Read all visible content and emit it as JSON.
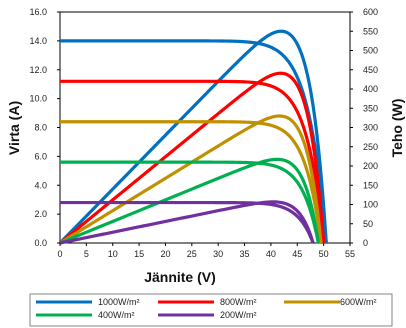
{
  "chart_data": {
    "type": "line",
    "xlabel": "Jännite (V)",
    "ylabel_left": "Virta (A)",
    "ylabel_right": "Teho (W)",
    "xlim": [
      0,
      55
    ],
    "ylim_left": [
      0,
      16
    ],
    "ylim_right": [
      0,
      600
    ],
    "x_ticks": [
      0,
      5,
      10,
      15,
      20,
      25,
      30,
      35,
      40,
      45,
      50,
      55
    ],
    "x_tick_labels": [
      "0",
      "5",
      "10",
      "15",
      "20",
      "25",
      "30",
      "35",
      "40",
      "45",
      "50",
      "55"
    ],
    "y_left_ticks": [
      0,
      2,
      4,
      6,
      8,
      10,
      12,
      14,
      16
    ],
    "y_left_tick_labels": [
      "0.0",
      "2.0",
      "4.0",
      "6.0",
      "8.0",
      "10.0",
      "12.0",
      "14.0",
      "16.0"
    ],
    "y_right_ticks": [
      0,
      50,
      100,
      150,
      200,
      250,
      300,
      350,
      400,
      450,
      500,
      550,
      600
    ],
    "y_right_tick_labels": [
      "0",
      "50",
      "100",
      "150",
      "200",
      "250",
      "300",
      "350",
      "400",
      "450",
      "500",
      "550",
      "600"
    ],
    "grid": false,
    "legend_position": "bottom",
    "series": [
      {
        "name": "1000W/m²",
        "color": "#0070c0",
        "isc": 14.0,
        "voc": 50.5,
        "vmp": 42.0,
        "imp": 13.1
      },
      {
        "name": "800W/m²",
        "color": "#ff0000",
        "isc": 11.2,
        "voc": 50.0,
        "vmp": 42.0,
        "imp": 10.5
      },
      {
        "name": "600W/m²",
        "color": "#c09000",
        "isc": 8.4,
        "voc": 49.5,
        "vmp": 42.0,
        "imp": 7.85
      },
      {
        "name": "400W/m²",
        "color": "#00b050",
        "isc": 5.6,
        "voc": 49.0,
        "vmp": 41.0,
        "imp": 5.3
      },
      {
        "name": "200W/m²",
        "color": "#7030a0",
        "isc": 2.8,
        "voc": 48.0,
        "vmp": 41.0,
        "imp": 2.6
      }
    ]
  }
}
